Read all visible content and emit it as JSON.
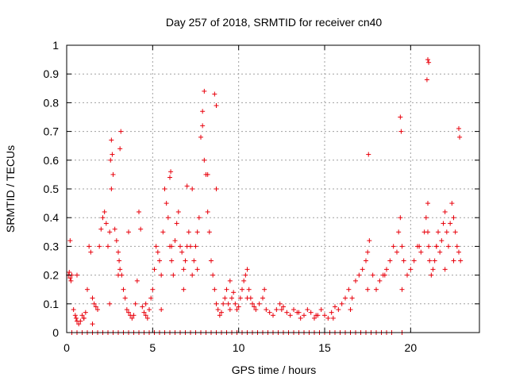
{
  "chart_data": {
    "type": "scatter",
    "title": "Day 257 of 2018, SRMTID for receiver cn40",
    "xlabel": "GPS time / hours",
    "ylabel": "SRMTID / TECUs",
    "xlim": [
      0,
      24
    ],
    "ylim": [
      0,
      1
    ],
    "xticks": [
      0,
      5,
      10,
      15,
      20
    ],
    "xtick_labels": [
      "0",
      "5",
      "10",
      "15",
      "20"
    ],
    "yticks": [
      0,
      0.1,
      0.2,
      0.3,
      0.4,
      0.5,
      0.6,
      0.7,
      0.8,
      0.9,
      1
    ],
    "ytick_labels": [
      "0",
      "0.1",
      "0.2",
      "0.3",
      "0.4",
      "0.5",
      "0.6",
      "0.7",
      "0.8",
      "0.9",
      "1"
    ],
    "grid": true,
    "marker": "+",
    "series": [
      {
        "name": "cn40",
        "color": "#e8000b",
        "x": [
          0.1,
          0.15,
          0.2,
          0.25,
          0.3,
          0.4,
          0.5,
          0.55,
          0.6,
          0.7,
          0.8,
          0.9,
          1.0,
          1.1,
          1.2,
          1.3,
          1.4,
          1.5,
          1.6,
          1.7,
          1.8,
          1.9,
          2.0,
          2.1,
          2.2,
          2.3,
          2.4,
          2.5,
          2.6,
          2.65,
          2.7,
          2.8,
          2.9,
          3.0,
          3.05,
          3.1,
          3.2,
          3.3,
          3.4,
          3.5,
          3.6,
          3.7,
          3.8,
          3.9,
          4.0,
          4.1,
          4.2,
          4.3,
          4.4,
          4.5,
          4.6,
          4.7,
          4.8,
          4.9,
          5.0,
          5.1,
          5.2,
          5.3,
          5.4,
          5.5,
          5.6,
          5.7,
          5.8,
          5.9,
          6.0,
          6.1,
          6.2,
          6.3,
          6.4,
          6.5,
          6.6,
          6.7,
          6.8,
          6.9,
          7.0,
          7.1,
          7.2,
          7.3,
          7.4,
          7.5,
          7.6,
          7.7,
          7.8,
          7.9,
          8.0,
          8.1,
          8.2,
          8.3,
          8.4,
          8.5,
          8.6,
          8.7,
          8.8,
          8.9,
          9.0,
          9.1,
          9.2,
          9.3,
          9.4,
          9.5,
          9.6,
          9.7,
          9.8,
          9.9,
          10.0,
          10.1,
          10.2,
          10.3,
          10.4,
          10.5,
          10.6,
          10.7,
          10.8,
          10.9,
          11.0,
          11.2,
          11.4,
          11.6,
          11.8,
          12.0,
          12.2,
          12.4,
          12.6,
          12.8,
          13.0,
          13.2,
          13.4,
          13.6,
          13.8,
          14.0,
          14.2,
          14.4,
          14.6,
          14.8,
          15.0,
          15.2,
          15.4,
          15.6,
          15.8,
          16.0,
          16.2,
          16.4,
          16.6,
          16.8,
          17.0,
          17.2,
          17.4,
          17.5,
          17.6,
          17.8,
          18.0,
          18.2,
          18.4,
          18.6,
          18.8,
          19.0,
          19.2,
          19.3,
          19.4,
          19.5,
          19.6,
          19.8,
          20.0,
          20.2,
          20.4,
          20.6,
          20.8,
          20.9,
          21.0,
          21.05,
          21.1,
          21.2,
          21.3,
          21.4,
          21.5,
          21.6,
          21.7,
          21.8,
          21.9,
          22.0,
          22.1,
          22.2,
          22.3,
          22.4,
          22.5,
          22.6,
          22.7,
          22.8,
          22.9,
          0.2,
          0.6,
          1.0,
          1.5,
          2.5,
          3.0,
          3.6,
          4.6,
          5.5,
          6.1,
          6.8,
          7.6,
          8.2,
          8.7,
          9.5,
          10.5,
          11.5,
          12.5,
          13.5,
          14.5,
          15.5,
          16.5,
          17.5,
          18.5,
          19.5,
          20.5,
          21.0,
          21.5,
          22.0,
          22.5,
          2.55,
          2.6,
          3.1,
          3.15,
          7.9,
          8.0,
          8.6,
          8.7,
          17.55,
          19.4,
          19.45,
          20.95,
          21.0,
          21.05,
          22.8,
          22.85,
          6.0,
          6.05,
          7.0,
          7.3
        ],
        "y": [
          0.2,
          0.21,
          0.19,
          0.18,
          0.2,
          0.08,
          0.06,
          0.05,
          0.04,
          0.03,
          0.04,
          0.06,
          0.05,
          0.07,
          0.15,
          0.3,
          0.28,
          0.12,
          0.1,
          0.09,
          0.08,
          0.3,
          0.36,
          0.4,
          0.42,
          0.38,
          0.3,
          0.35,
          0.5,
          0.62,
          0.55,
          0.36,
          0.32,
          0.28,
          0.25,
          0.22,
          0.2,
          0.15,
          0.12,
          0.08,
          0.07,
          0.06,
          0.05,
          0.06,
          0.1,
          0.18,
          0.42,
          0.36,
          0.09,
          0.07,
          0.06,
          0.05,
          0.08,
          0.12,
          0.15,
          0.22,
          0.3,
          0.28,
          0.25,
          0.2,
          0.35,
          0.5,
          0.45,
          0.4,
          0.3,
          0.25,
          0.2,
          0.32,
          0.38,
          0.42,
          0.3,
          0.28,
          0.22,
          0.25,
          0.3,
          0.35,
          0.3,
          0.2,
          0.25,
          0.3,
          0.35,
          0.4,
          0.68,
          0.72,
          0.6,
          0.55,
          0.42,
          0.35,
          0.25,
          0.2,
          0.15,
          0.1,
          0.08,
          0.06,
          0.07,
          0.1,
          0.12,
          0.15,
          0.1,
          0.08,
          0.12,
          0.14,
          0.1,
          0.08,
          0.09,
          0.12,
          0.15,
          0.18,
          0.2,
          0.22,
          0.15,
          0.12,
          0.1,
          0.09,
          0.08,
          0.1,
          0.12,
          0.08,
          0.07,
          0.06,
          0.08,
          0.1,
          0.09,
          0.07,
          0.06,
          0.08,
          0.07,
          0.05,
          0.06,
          0.08,
          0.07,
          0.05,
          0.06,
          0.08,
          0.06,
          0.05,
          0.07,
          0.09,
          0.08,
          0.1,
          0.12,
          0.15,
          0.12,
          0.18,
          0.2,
          0.22,
          0.25,
          0.28,
          0.32,
          0.2,
          0.15,
          0.18,
          0.2,
          0.22,
          0.25,
          0.3,
          0.28,
          0.35,
          0.4,
          0.3,
          0.25,
          0.2,
          0.22,
          0.25,
          0.3,
          0.28,
          0.35,
          0.4,
          0.45,
          0.3,
          0.25,
          0.2,
          0.22,
          0.25,
          0.3,
          0.35,
          0.28,
          0.32,
          0.38,
          0.42,
          0.35,
          0.3,
          0.38,
          0.45,
          0.4,
          0.35,
          0.3,
          0.28,
          0.25,
          0.32,
          0.2,
          0.05,
          0.03,
          0.1,
          0.2,
          0.35,
          0.1,
          0.08,
          0.3,
          0.15,
          0.22,
          0.55,
          0.5,
          0.18,
          0.12,
          0.15,
          0.08,
          0.07,
          0.06,
          0.05,
          0.08,
          0.15,
          0.2,
          0.15,
          0.3,
          0.35,
          0.3,
          0.22,
          0.25,
          0.6,
          0.67,
          0.64,
          0.7,
          0.77,
          0.84,
          0.83,
          0.79,
          0.62,
          0.75,
          0.7,
          0.88,
          0.95,
          0.94,
          0.71,
          0.68,
          0.54,
          0.56,
          0.51,
          0.5
        ],
        "zero_band_x": [
          0.3,
          0.6,
          0.9,
          1.2,
          1.5,
          1.8,
          2.1,
          2.4,
          2.7,
          3.0,
          3.3,
          3.6,
          3.9,
          4.2,
          4.5,
          4.8,
          5.1,
          5.4,
          5.7,
          6.0,
          6.3,
          6.6,
          6.9,
          7.2,
          7.5,
          7.8,
          8.1,
          8.4,
          8.7,
          9.0,
          9.3,
          9.6,
          9.9,
          10.2,
          10.5,
          10.8,
          11.1,
          11.4,
          11.7,
          12.0,
          12.3,
          12.6,
          12.9,
          13.2,
          13.5,
          13.8,
          14.1,
          14.4,
          14.7,
          15.0,
          15.3,
          15.6,
          15.9,
          16.2,
          16.5,
          16.8,
          17.1,
          17.4,
          17.7,
          18.0,
          18.3,
          18.6,
          18.9,
          19.5
        ]
      }
    ]
  }
}
